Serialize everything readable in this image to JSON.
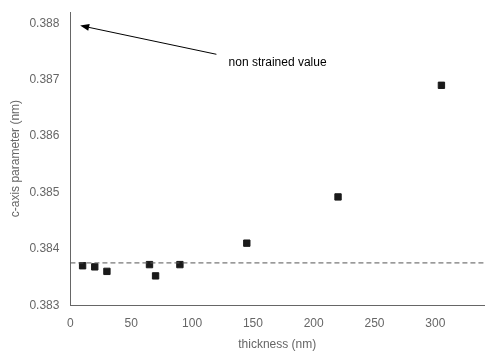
{
  "chart_data": {
    "type": "scatter",
    "x": [
      10,
      20,
      30,
      65,
      70,
      90,
      145,
      220,
      305
    ],
    "values": [
      0.3837,
      0.38368,
      0.3836,
      0.38372,
      0.38352,
      0.38372,
      0.3841,
      0.38492,
      0.3869
    ],
    "color": "#1a1a1a",
    "marker": "square",
    "xlabel": "thickness (nm)",
    "ylabel": "c-axis parameter (nm)",
    "xlim": [
      0,
      340
    ],
    "ylim": [
      0.383,
      0.3882
    ],
    "xticks": [
      0,
      50,
      100,
      150,
      200,
      250,
      300
    ],
    "yticks": [
      0.383,
      0.384,
      0.385,
      0.386,
      0.387,
      0.388
    ],
    "grid": false,
    "reference_lines": [
      {
        "y": 0.38375,
        "color": "#555555",
        "line_style": "dashed"
      }
    ],
    "annotations": [
      {
        "text": "non strained value",
        "x": 130,
        "y": 0.3873,
        "arrow_tail": [
          120,
          0.38745
        ],
        "arrow_tip": [
          8,
          0.38796
        ]
      }
    ]
  }
}
